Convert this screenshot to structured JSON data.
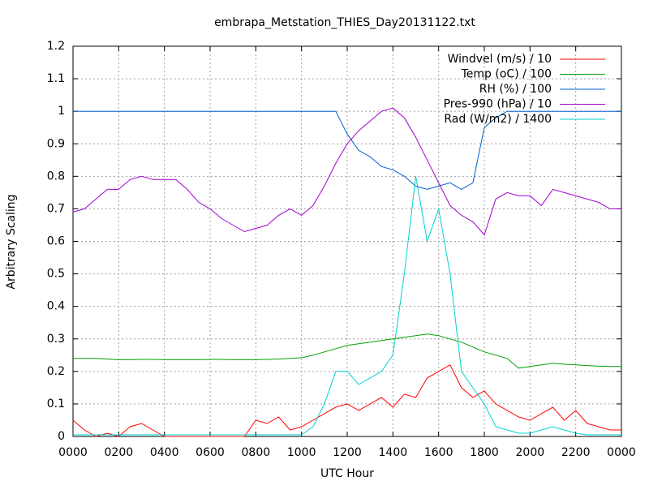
{
  "chart_data": {
    "type": "line",
    "title": "embrapa_Metstation_THIES_Day20131122.txt",
    "xlabel": "UTC Hour",
    "ylabel": "Arbitrary Scaling",
    "x": [
      0,
      0.5,
      1,
      1.5,
      2,
      2.5,
      3,
      3.5,
      4,
      4.5,
      5,
      5.5,
      6,
      6.5,
      7,
      7.5,
      8,
      8.5,
      9,
      9.5,
      10,
      10.5,
      11,
      11.5,
      12,
      12.5,
      13,
      13.5,
      14,
      14.5,
      15,
      15.5,
      16,
      16.5,
      17,
      17.5,
      18,
      18.5,
      19,
      19.5,
      20,
      20.5,
      21,
      21.5,
      22,
      22.5,
      23,
      23.5,
      24
    ],
    "series": [
      {
        "name": "Windvel (m/s) / 10",
        "color": "#ff0000",
        "values": [
          0.05,
          0.02,
          0,
          0.01,
          0,
          0.03,
          0.04,
          0.02,
          0,
          0,
          0,
          0,
          0,
          0,
          0,
          0,
          0.05,
          0.04,
          0.06,
          0.02,
          0.03,
          0.05,
          0.07,
          0.09,
          0.1,
          0.08,
          0.1,
          0.12,
          0.09,
          0.13,
          0.12,
          0.18,
          0.2,
          0.22,
          0.15,
          0.12,
          0.14,
          0.1,
          0.08,
          0.06,
          0.05,
          0.07,
          0.09,
          0.05,
          0.08,
          0.04,
          0.03,
          0.02,
          0.02
        ]
      },
      {
        "name": "Temp (oC) / 100",
        "color": "#00a000",
        "values": [
          0.24,
          0.24,
          0.24,
          0.238,
          0.236,
          0.236,
          0.237,
          0.237,
          0.236,
          0.236,
          0.236,
          0.236,
          0.237,
          0.237,
          0.236,
          0.236,
          0.236,
          0.237,
          0.238,
          0.24,
          0.242,
          0.25,
          0.26,
          0.27,
          0.28,
          0.285,
          0.29,
          0.295,
          0.3,
          0.305,
          0.31,
          0.315,
          0.31,
          0.3,
          0.29,
          0.275,
          0.26,
          0.25,
          0.24,
          0.21,
          0.215,
          0.22,
          0.225,
          0.222,
          0.22,
          0.218,
          0.216,
          0.215,
          0.215
        ]
      },
      {
        "name": "RH (%) / 100",
        "color": "#0060d0",
        "values": [
          1,
          1,
          1,
          1,
          1,
          1,
          1,
          1,
          1,
          1,
          1,
          1,
          1,
          1,
          1,
          1,
          1,
          1,
          1,
          1,
          1,
          1,
          1,
          1,
          0.93,
          0.88,
          0.86,
          0.83,
          0.82,
          0.8,
          0.77,
          0.76,
          0.77,
          0.78,
          0.76,
          0.78,
          0.95,
          0.98,
          1,
          1,
          1,
          1,
          1,
          1,
          1,
          1,
          1,
          1,
          1
        ]
      },
      {
        "name": "Pres-990 (hPa) / 10",
        "color": "#a000d0",
        "values": [
          0.69,
          0.7,
          0.73,
          0.76,
          0.76,
          0.79,
          0.8,
          0.79,
          0.79,
          0.79,
          0.76,
          0.72,
          0.7,
          0.67,
          0.65,
          0.63,
          0.64,
          0.65,
          0.68,
          0.7,
          0.68,
          0.71,
          0.77,
          0.84,
          0.9,
          0.94,
          0.97,
          1,
          1.01,
          0.98,
          0.92,
          0.85,
          0.78,
          0.71,
          0.68,
          0.66,
          0.62,
          0.73,
          0.75,
          0.74,
          0.74,
          0.71,
          0.76,
          0.75,
          0.74,
          0.73,
          0.72,
          0.7,
          0.7
        ]
      },
      {
        "name": "Rad (W/m2) / 1400",
        "color": "#00d0d0",
        "values": [
          0.005,
          0.005,
          0.005,
          0.005,
          0.005,
          0.005,
          0.005,
          0.005,
          0.005,
          0.005,
          0.005,
          0.005,
          0.005,
          0.005,
          0.005,
          0.005,
          0.005,
          0.005,
          0.005,
          0.005,
          0.005,
          0.03,
          0.1,
          0.2,
          0.2,
          0.16,
          0.18,
          0.2,
          0.25,
          0.5,
          0.8,
          0.6,
          0.7,
          0.5,
          0.2,
          0.15,
          0.1,
          0.03,
          0.02,
          0.01,
          0.01,
          0.02,
          0.03,
          0.02,
          0.01,
          0.005,
          0.005,
          0.005,
          0.005
        ]
      }
    ],
    "xlim": [
      0,
      24
    ],
    "xticks": [
      {
        "value": 0,
        "label": "0000"
      },
      {
        "value": 2,
        "label": "0200"
      },
      {
        "value": 4,
        "label": "0400"
      },
      {
        "value": 6,
        "label": "0600"
      },
      {
        "value": 8,
        "label": "0800"
      },
      {
        "value": 10,
        "label": "1000"
      },
      {
        "value": 12,
        "label": "1200"
      },
      {
        "value": 14,
        "label": "1400"
      },
      {
        "value": 16,
        "label": "1600"
      },
      {
        "value": 18,
        "label": "1800"
      },
      {
        "value": 20,
        "label": "2000"
      },
      {
        "value": 22,
        "label": "2200"
      },
      {
        "value": 24,
        "label": "0000"
      }
    ],
    "ylim": [
      0,
      1.2
    ],
    "yticks": [
      0,
      0.1,
      0.2,
      0.3,
      0.4,
      0.5,
      0.6,
      0.7,
      0.8,
      0.9,
      1,
      1.1,
      1.2
    ],
    "grid": true,
    "legend": "top-right"
  }
}
